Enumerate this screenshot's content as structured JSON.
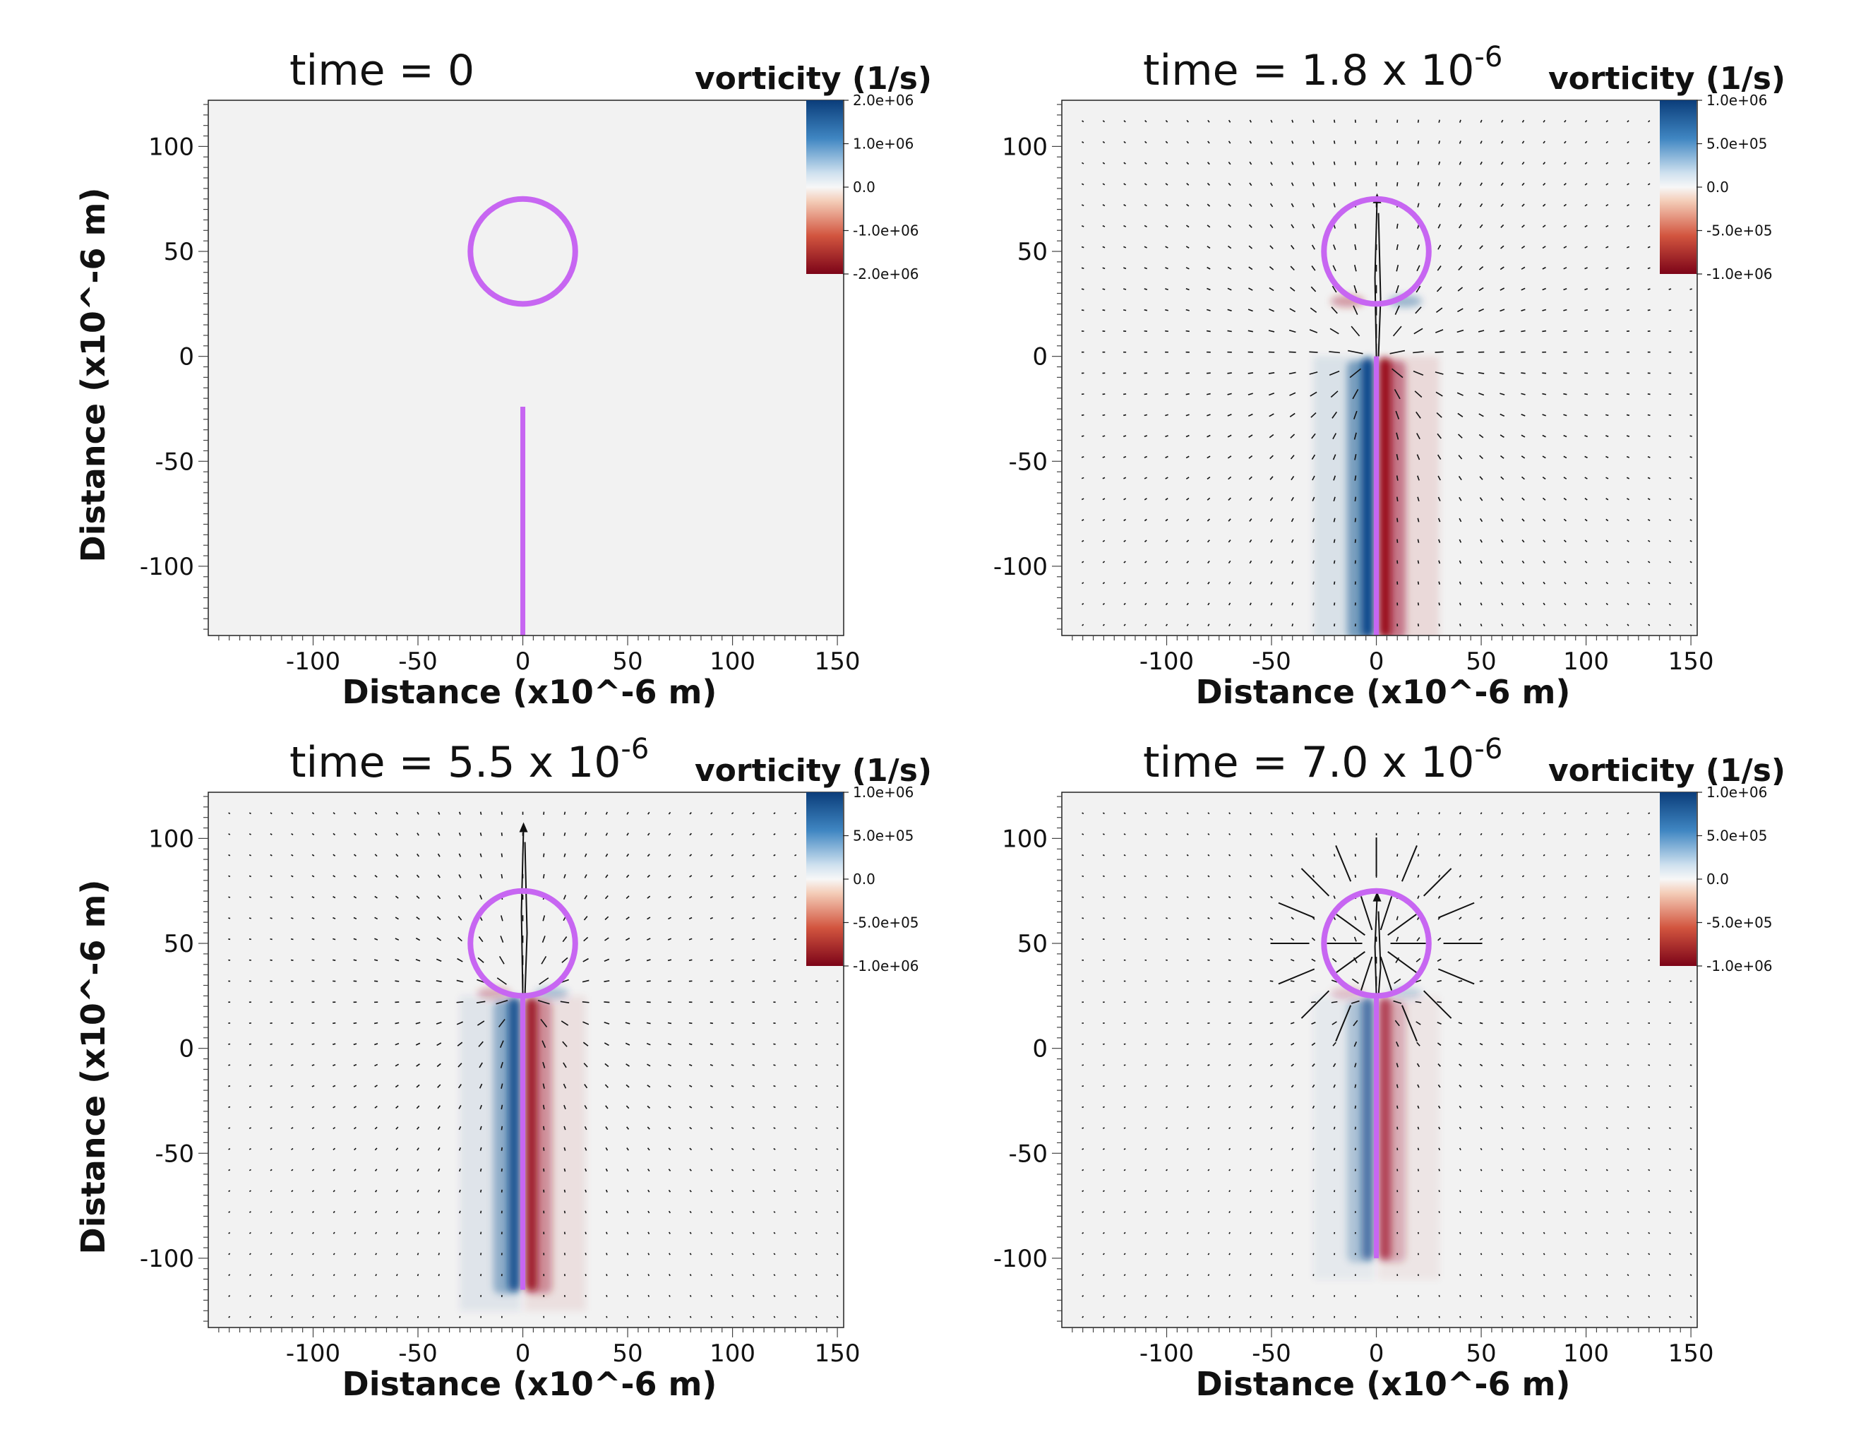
{
  "chart_data": [
    {
      "type": "heatmap",
      "title": "time = 0",
      "title_base": "time = 0",
      "title_exp": "",
      "colorbar_title": "vorticity (1/s)",
      "colorbar_ticks": [
        "2.0e+06",
        "1.0e+06",
        "0.0",
        "-1.0e+06",
        "-2.0e+06"
      ],
      "colorbar_range": [
        -2000000,
        2000000
      ],
      "xlabel": "Distance (x10^-6 m)",
      "ylabel": "Distance (x10^-6 m)",
      "xlim": [
        -150,
        153
      ],
      "ylim": [
        -133,
        122
      ],
      "xticks": [
        -100,
        -50,
        0,
        50,
        100,
        150
      ],
      "yticks": [
        100,
        50,
        0,
        -50,
        -100
      ],
      "x_tick_labels": [
        "-100",
        "-50",
        "0",
        "50",
        "100",
        "150"
      ],
      "y_tick_labels": [
        "100",
        "50",
        "0",
        "-50",
        "-100"
      ],
      "circle": {
        "cx": 0,
        "cy": 50,
        "r": 25
      },
      "rod": {
        "x": 0,
        "y_top": -24,
        "y_bottom": -133
      },
      "vorticity_strength": 0,
      "vector_arrows": false
    },
    {
      "type": "heatmap",
      "title": "time = 1.8 x 10-6",
      "title_base": "time = 1.8 x 10",
      "title_exp": "-6",
      "colorbar_title": "vorticity (1/s)",
      "colorbar_ticks": [
        "1.0e+06",
        "5.0e+05",
        "0.0",
        "-5.0e+05",
        "-1.0e+06"
      ],
      "colorbar_range": [
        -1000000,
        1000000
      ],
      "xlabel": "Distance (x10^-6 m)",
      "ylabel": "Distance (x10^-6 m)",
      "xlim": [
        -150,
        153
      ],
      "ylim": [
        -133,
        122
      ],
      "xticks": [
        -100,
        -50,
        0,
        50,
        100,
        150
      ],
      "yticks": [
        100,
        50,
        0,
        -50,
        -100
      ],
      "x_tick_labels": [
        "-100",
        "-50",
        "0",
        "50",
        "100",
        "150"
      ],
      "y_tick_labels": [
        "100",
        "50",
        "0",
        "-50",
        "-100"
      ],
      "circle": {
        "cx": 0,
        "cy": 50,
        "r": 25
      },
      "rod": {
        "x": 0,
        "y_top": 0,
        "y_bottom": -133
      },
      "vorticity_strength": 1,
      "vector_arrows": true
    },
    {
      "type": "heatmap",
      "title": "time = 5.5 x 10-6",
      "title_base": "time = 5.5 x 10",
      "title_exp": "-6",
      "colorbar_title": "vorticity (1/s)",
      "colorbar_ticks": [
        "1.0e+06",
        "5.0e+05",
        "0.0",
        "-5.0e+05",
        "-1.0e+06"
      ],
      "colorbar_range": [
        -1000000,
        1000000
      ],
      "xlabel": "Distance (x10^-6 m)",
      "ylabel": "Distance (x10^-6 m)",
      "xlim": [
        -150,
        153
      ],
      "ylim": [
        -133,
        122
      ],
      "xticks": [
        -100,
        -50,
        0,
        50,
        100,
        150
      ],
      "yticks": [
        100,
        50,
        0,
        -50,
        -100
      ],
      "x_tick_labels": [
        "-100",
        "-50",
        "0",
        "50",
        "100",
        "150"
      ],
      "y_tick_labels": [
        "100",
        "50",
        "0",
        "-50",
        "-100"
      ],
      "circle": {
        "cx": 0,
        "cy": 50,
        "r": 25
      },
      "rod": {
        "x": 0,
        "y_top": 25,
        "y_bottom": -115
      },
      "vorticity_strength": 0.8,
      "vector_arrows": true
    },
    {
      "type": "heatmap",
      "title": "time = 7.0 x 10-6",
      "title_base": "time = 7.0 x 10",
      "title_exp": "-6",
      "colorbar_title": "vorticity (1/s)",
      "colorbar_ticks": [
        "1.0e+06",
        "5.0e+05",
        "0.0",
        "-5.0e+05",
        "-1.0e+06"
      ],
      "colorbar_range": [
        -1000000,
        1000000
      ],
      "xlabel": "Distance (x10^-6 m)",
      "ylabel": "Distance (x10^-6 m)",
      "xlim": [
        -150,
        153
      ],
      "ylim": [
        -133,
        122
      ],
      "xticks": [
        -100,
        -50,
        0,
        50,
        100,
        150
      ],
      "yticks": [
        100,
        50,
        0,
        -50,
        -100
      ],
      "x_tick_labels": [
        "-100",
        "-50",
        "0",
        "50",
        "100",
        "150"
      ],
      "y_tick_labels": [
        "100",
        "50",
        "0",
        "-50",
        "-100"
      ],
      "circle": {
        "cx": 0,
        "cy": 50,
        "r": 25
      },
      "rod": {
        "x": 0,
        "y_top": 25,
        "y_bottom": -100
      },
      "vorticity_strength": 0.55,
      "vector_arrows": true
    }
  ],
  "colors": {
    "background": "#f2f2f2",
    "marker": "#c766f2",
    "positive": "#0b4a8c",
    "negative": "#9a0a1e",
    "arrow": "#111111"
  }
}
